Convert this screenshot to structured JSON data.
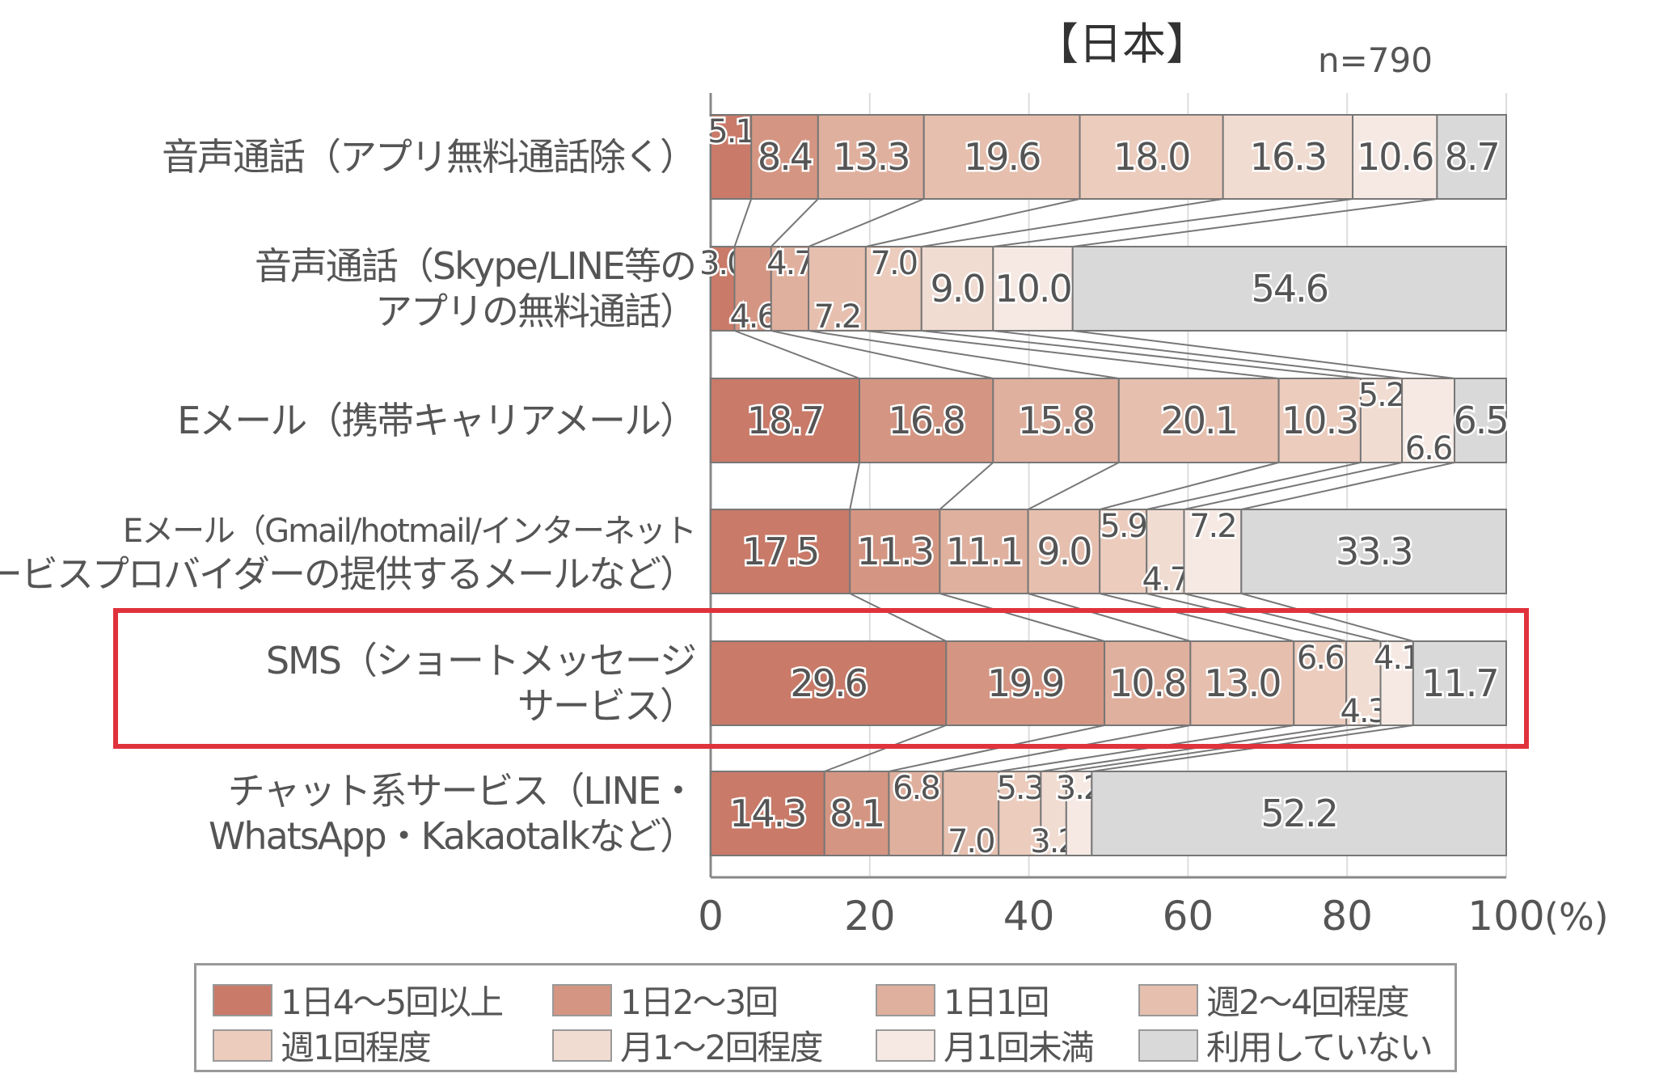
{
  "chart_data": {
    "type": "bar",
    "orientation": "horizontal-stacked-100",
    "title": "【日本】",
    "annotation": "n=790",
    "xlabel": "(%)",
    "xlim": [
      0,
      100
    ],
    "xticks": [
      "0",
      "20",
      "40",
      "60",
      "80",
      "100"
    ],
    "grid": true,
    "legend_position": "bottom",
    "categories": [
      [
        "音声通話（アプリ無料通話除く）"
      ],
      [
        "音声通話（Skype/LINE等の",
        "アプリの無料通話）"
      ],
      [
        "Eメール（携帯キャリアメール）"
      ],
      [
        "Eメール（Gmail/hotmail/インターネット",
        "サービスプロバイダーの提供するメールなど）"
      ],
      [
        "SMS（ショートメッセージ",
        "サービス）"
      ],
      [
        "チャット系サービス（LINE・",
        "WhatsApp・Kakaotalkなど）"
      ]
    ],
    "series": [
      {
        "name": "1日4〜5回以上",
        "color": "#c97a68",
        "values": [
          5.1,
          3.0,
          18.7,
          17.5,
          29.6,
          14.3
        ]
      },
      {
        "name": "1日2〜3回",
        "color": "#d49682",
        "values": [
          8.4,
          4.6,
          16.8,
          11.3,
          19.9,
          8.1
        ]
      },
      {
        "name": "1日1回",
        "color": "#e0b09e",
        "values": [
          13.3,
          4.7,
          15.8,
          11.1,
          10.8,
          6.8
        ]
      },
      {
        "name": "週2〜4回程度",
        "color": "#e6bfae",
        "values": [
          19.6,
          7.2,
          20.1,
          9.0,
          13.0,
          7.0
        ]
      },
      {
        "name": "週1回程度",
        "color": "#ecccbd",
        "values": [
          18.0,
          7.0,
          10.3,
          5.9,
          6.6,
          5.3
        ]
      },
      {
        "name": "月1〜2回程度",
        "color": "#f1dcd2",
        "values": [
          16.3,
          9.0,
          5.2,
          4.7,
          4.3,
          3.2
        ]
      },
      {
        "name": "月1回未満",
        "color": "#f6e9e3",
        "values": [
          10.6,
          10.0,
          6.6,
          7.2,
          4.1,
          3.2
        ]
      },
      {
        "name": "利用していない",
        "color": "#d9d9d9",
        "values": [
          8.7,
          54.6,
          6.5,
          33.3,
          11.7,
          52.2
        ]
      }
    ],
    "highlighted_category": "SMS（ショートメッセージサービス）",
    "highlight_color": "#e0323c"
  }
}
